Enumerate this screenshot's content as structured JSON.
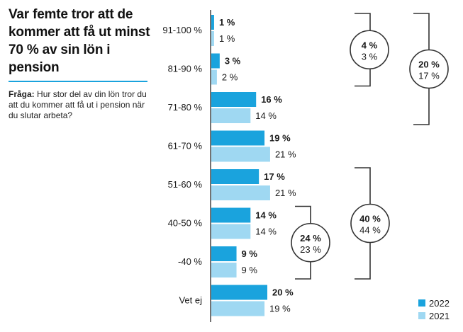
{
  "title": "Var femte tror att de kommer att få ut minst 70 % av sin lön i pension",
  "question_label": "Fråga:",
  "question_text": "Hur stor del av din lön tror du att du kommer att få ut i pension när du slutar arbeta?",
  "colors": {
    "2022": "#1aa3dd",
    "2021": "#9fd8f2",
    "text": "#1a1a1a",
    "bracket": "#333333",
    "accent": "#1aa3dd"
  },
  "chart_data": {
    "type": "bar",
    "orientation": "horizontal",
    "title": "Var femte tror att de kommer att få ut minst 70 % av sin lön i pension",
    "categories": [
      "91-100 %",
      "81-90 %",
      "71-80 %",
      "61-70 %",
      "51-60 %",
      "40-50 %",
      "-40 %",
      "Vet ej"
    ],
    "series": [
      {
        "name": "2022",
        "values": [
          1,
          3,
          16,
          19,
          17,
          14,
          9,
          20
        ]
      },
      {
        "name": "2021",
        "values": [
          1,
          2,
          14,
          21,
          21,
          14,
          9,
          19
        ]
      }
    ],
    "value_suffix": " %",
    "legend": [
      "2022",
      "2021"
    ],
    "legend_position": "bottom-right",
    "groups": [
      {
        "from": 0,
        "to": 1,
        "label_2022": "4 %",
        "label_2021": "3 %"
      },
      {
        "from": 0,
        "to": 2,
        "label_2022": "20 %",
        "label_2021": "17 %"
      },
      {
        "from": 5,
        "to": 6,
        "label_2022": "24 %",
        "label_2021": "23 %"
      },
      {
        "from": 4,
        "to": 6,
        "label_2022": "40 %",
        "label_2021": "44 %"
      }
    ]
  }
}
